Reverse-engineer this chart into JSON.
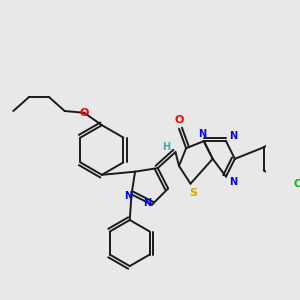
{
  "background_color": "#e8e8e8",
  "bond_color": "#1a1a1a",
  "atom_colors": {
    "O": "#ff0000",
    "N": "#0000ff",
    "S": "#ccaa00",
    "Cl": "#00bb00",
    "H": "#44aaaa",
    "C": "#1a1a1a"
  },
  "figsize": [
    3.0,
    3.0
  ],
  "dpi": 100
}
